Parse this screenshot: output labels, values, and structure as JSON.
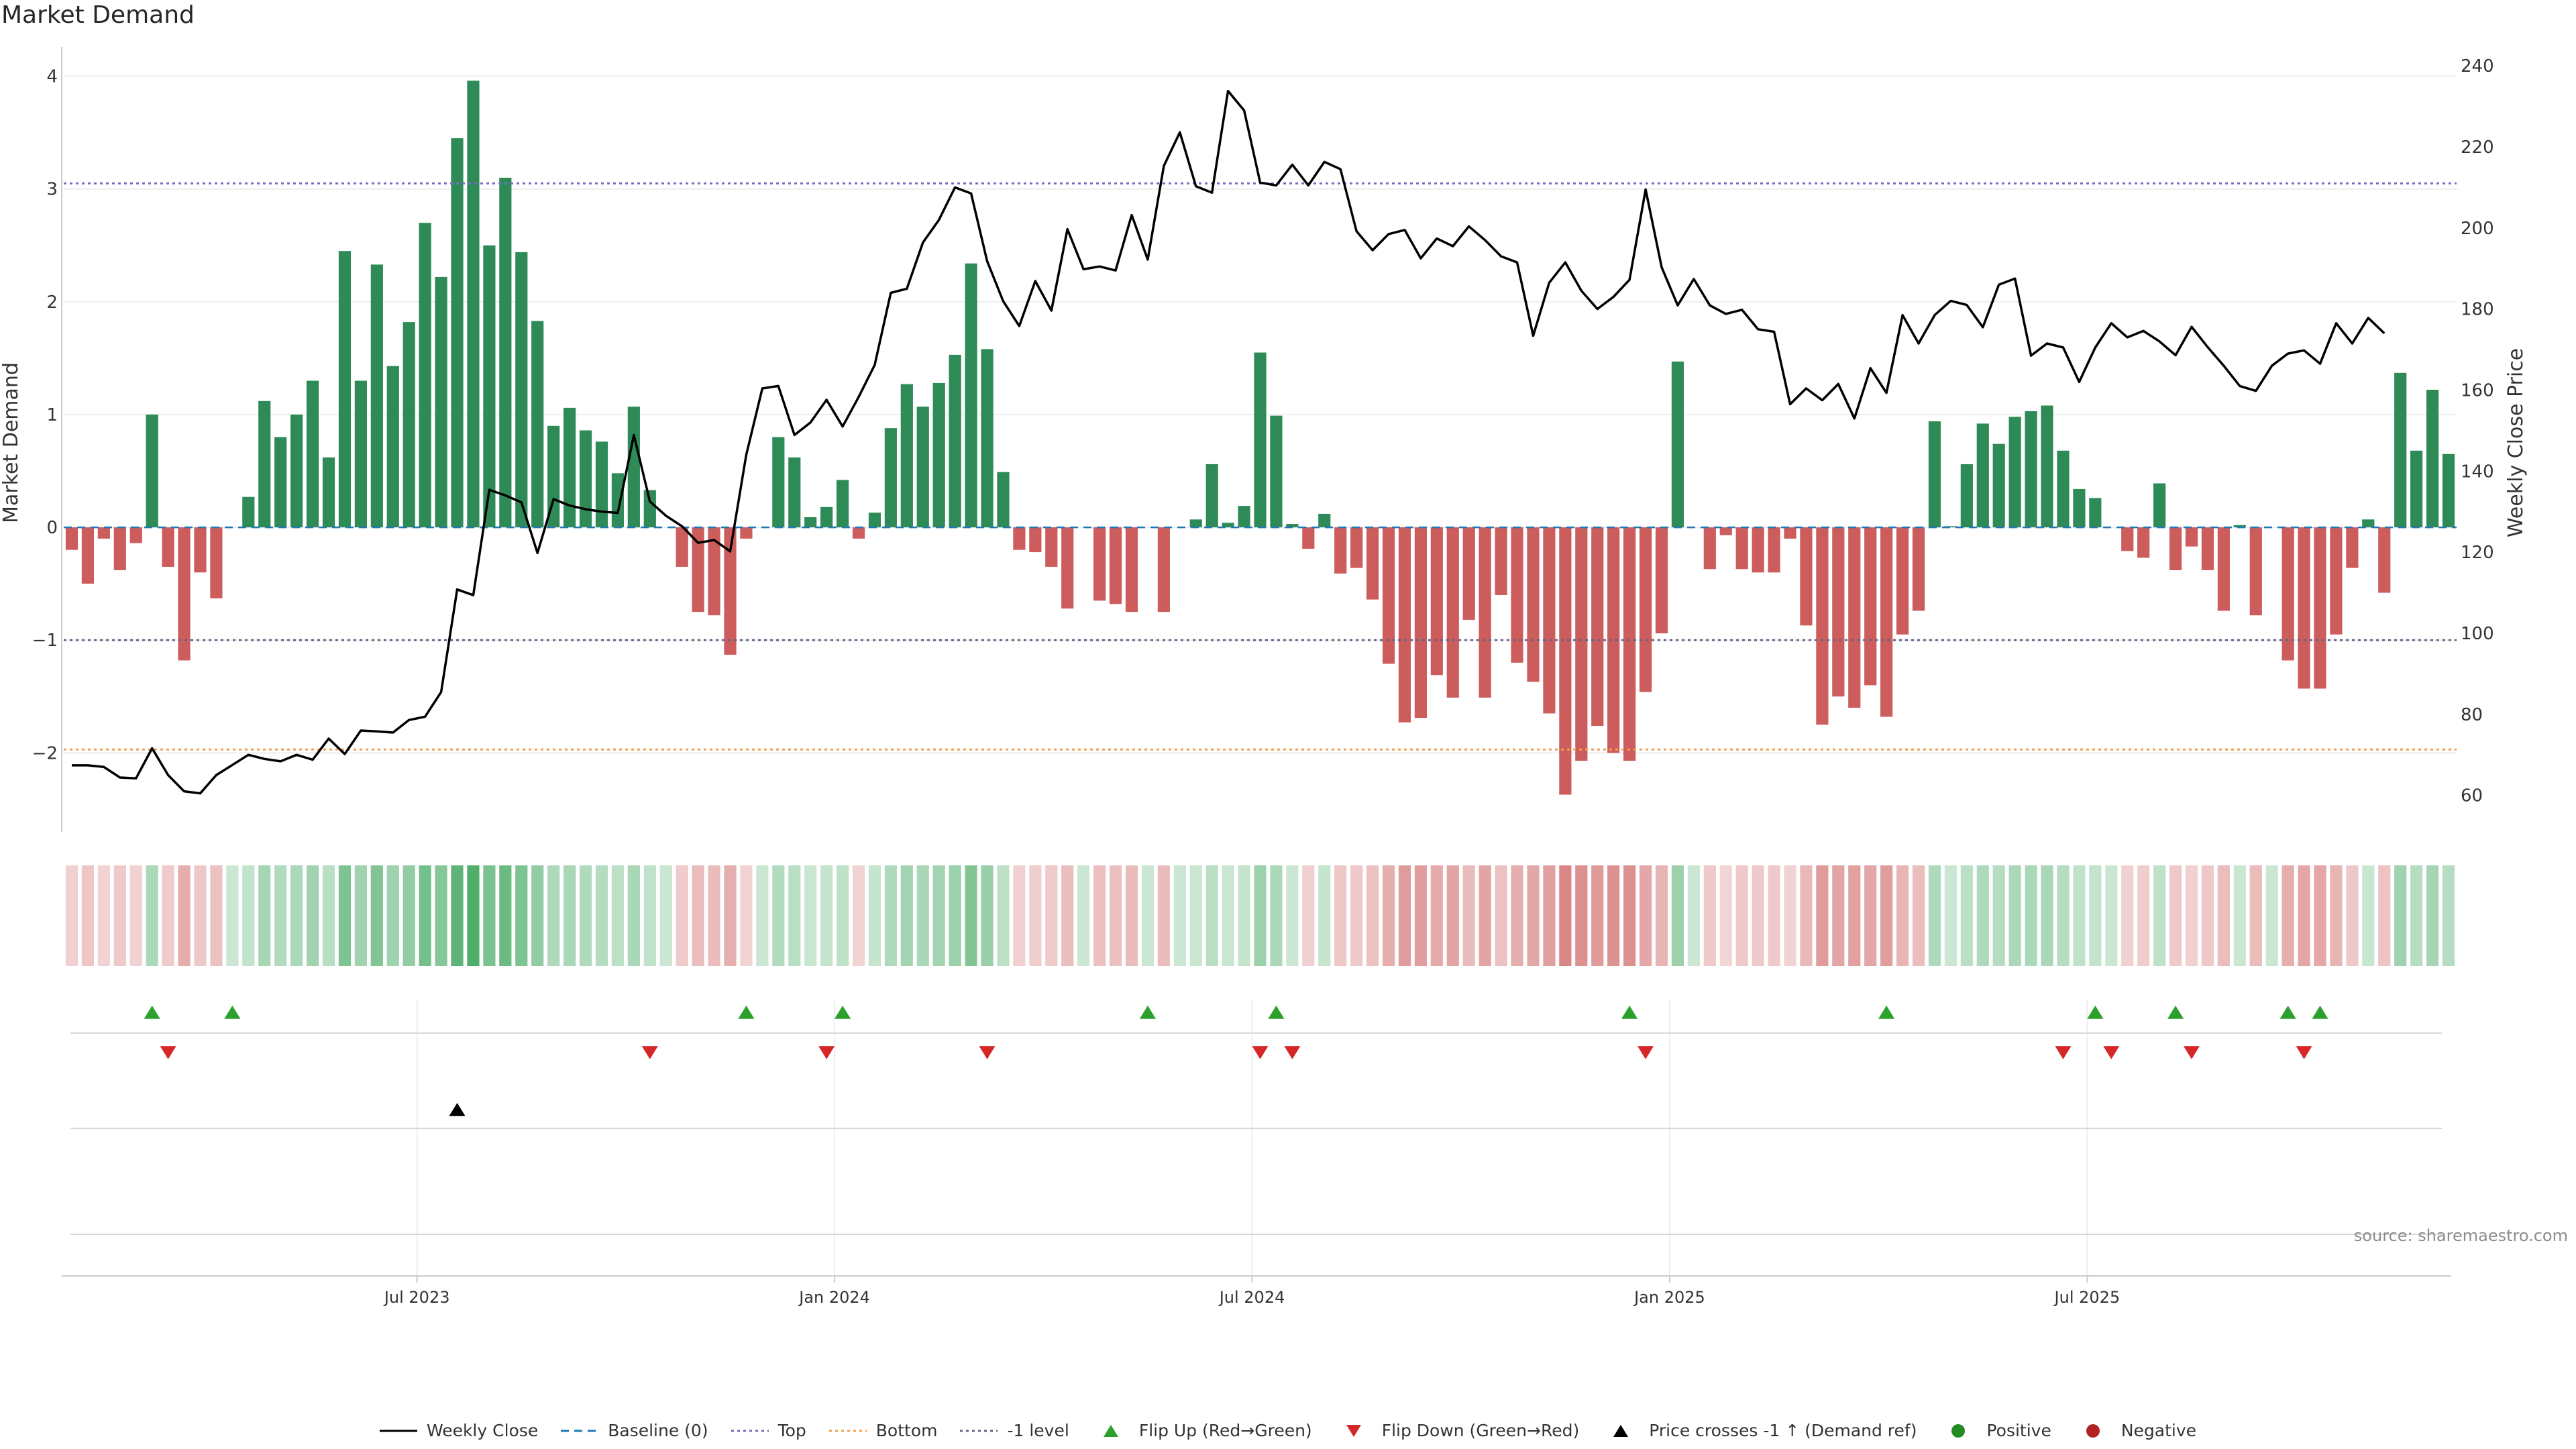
{
  "title": "Market Demand",
  "source": "source: sharemaestro.com",
  "legend": [
    {
      "label": "Weekly Close",
      "symbol": "line-solid",
      "color": "#000000"
    },
    {
      "label": "Baseline (0)",
      "symbol": "line-dash",
      "color": "#1f77b4"
    },
    {
      "label": "Top",
      "symbol": "line-dot",
      "color": "#7b68c8"
    },
    {
      "label": "Bottom",
      "symbol": "line-dot",
      "color": "#f0a050"
    },
    {
      "label": "-1 level",
      "symbol": "line-dot",
      "color": "#666688"
    },
    {
      "label": "Flip Up (Red→Green)",
      "symbol": "triangle-up",
      "color": "#2ca02c"
    },
    {
      "label": "Flip Down (Green→Red)",
      "symbol": "triangle-down",
      "color": "#d62728"
    },
    {
      "label": "Price crosses -1 ↑ (Demand ref)",
      "symbol": "triangle-up",
      "color": "#000000"
    },
    {
      "label": "Positive",
      "symbol": "dot",
      "color": "#228b22"
    },
    {
      "label": "Negative",
      "symbol": "dot",
      "color": "#b22222"
    }
  ],
  "chart_data": {
    "type": "bar",
    "title": "Market Demand",
    "ylabel": "Market Demand",
    "y2label": "Weekly Close Price",
    "ylim": [
      -2.7,
      4.2
    ],
    "y2lim": [
      51,
      243
    ],
    "yticks": [
      -2,
      -1,
      0,
      1,
      2,
      3,
      4
    ],
    "y2ticks": [
      60,
      80,
      100,
      120,
      140,
      160,
      180,
      200,
      220,
      240
    ],
    "xtick_labels": [
      "Jul 2023",
      "Jan 2024",
      "Jul 2024",
      "Jan 2025",
      "Jul 2025"
    ],
    "xtick_weeks": [
      22,
      48,
      74,
      100,
      126
    ],
    "reference_lines": {
      "baseline": 0,
      "top": 3.05,
      "bottom": -1.97,
      "minus_one": -1
    },
    "colors": {
      "positive": "#2e8b57",
      "negative": "#cd5c5c",
      "price": "#000000",
      "flip_up": "#2ca02c",
      "flip_down": "#d62728"
    },
    "demand": [
      -0.2,
      -0.5,
      -0.1,
      -0.38,
      -0.14,
      1.0,
      -0.35,
      -1.18,
      -0.4,
      -0.63,
      0.0,
      0.27,
      1.12,
      0.8,
      1.0,
      1.3,
      0.62,
      2.45,
      1.3,
      2.33,
      1.43,
      1.82,
      2.7,
      2.22,
      3.45,
      3.96,
      2.5,
      3.1,
      2.44,
      1.83,
      0.9,
      1.06,
      0.86,
      0.76,
      0.48,
      1.07,
      0.33,
      0.0,
      -0.35,
      -0.75,
      -0.78,
      -1.13,
      -0.1,
      0.0,
      0.8,
      0.62,
      0.09,
      0.18,
      0.42,
      -0.1,
      0.13,
      0.88,
      1.27,
      1.07,
      1.28,
      1.53,
      2.34,
      1.58,
      0.49,
      -0.2,
      -0.22,
      -0.35,
      -0.72,
      0.0,
      -0.65,
      -0.68,
      -0.75,
      0.0,
      -0.75,
      0.0,
      0.07,
      0.56,
      0.04,
      0.19,
      1.55,
      0.99,
      0.03,
      -0.19,
      0.12,
      -0.41,
      -0.36,
      -0.64,
      -1.21,
      -1.73,
      -1.69,
      -1.31,
      -1.51,
      -0.82,
      -1.51,
      -0.6,
      -1.2,
      -1.37,
      -1.65,
      -2.37,
      -2.07,
      -1.76,
      -2.0,
      -2.07,
      -1.46,
      -0.94,
      1.47,
      0.0,
      -0.37,
      -0.07,
      -0.37,
      -0.4,
      -0.4,
      -0.1,
      -0.87,
      -1.75,
      -1.5,
      -1.6,
      -1.4,
      -1.68,
      -0.95,
      -0.74,
      0.94,
      0.01,
      0.56,
      0.92,
      0.74,
      0.98,
      1.03,
      1.08,
      0.68,
      0.34,
      0.26,
      0.0,
      -0.21,
      -0.27,
      0.39,
      -0.38,
      -0.17,
      -0.38,
      -0.74,
      0.02,
      -0.78,
      0.0,
      -1.18,
      -1.43,
      -1.43,
      -0.95,
      -0.36,
      0.07,
      -0.58,
      1.37,
      0.68,
      1.22,
      0.65
    ],
    "price": [
      67.4,
      67.4,
      67,
      64.4,
      64.2,
      71.6,
      65,
      61,
      60.5,
      65,
      67.5,
      70,
      69,
      68.4,
      70,
      68.8,
      74,
      70.2,
      76,
      75.8,
      75.5,
      78.6,
      79.4,
      85.5,
      110.8,
      109.4,
      135.4,
      134,
      132.3,
      119.8,
      133.1,
      131.5,
      130.6,
      130,
      129.7,
      148.9,
      132.5,
      129,
      126.4,
      122.3,
      123,
      120.2,
      144,
      160.4,
      161,
      148.9,
      152,
      157.6,
      151,
      158.3,
      166.2,
      184,
      185,
      196.4,
      202,
      210,
      208.5,
      191.8,
      181.9,
      175.8,
      186.9,
      179.6,
      199.7,
      189.8,
      190.5,
      189.5,
      203.2,
      192.2,
      215.3,
      223.6,
      210.3,
      208.7,
      233.8,
      229,
      211.2,
      210.5,
      215.6,
      210.5,
      216.3,
      214.5,
      199.2,
      194.5,
      198.5,
      199.5,
      192.5,
      197.4,
      195.5,
      200.4,
      197,
      193,
      191.5,
      173.4,
      186.5,
      191.5,
      184.5,
      180,
      183,
      187.2,
      209.5,
      190.3,
      180.9,
      187.4,
      180.9,
      178.8,
      179.8,
      175,
      174.4,
      156.5,
      160.4,
      157.5,
      161.5,
      153,
      165.4,
      159.3,
      178.5,
      171.5,
      178.5,
      182,
      181,
      175.5,
      186,
      187.5,
      168.5,
      171.5,
      170.5,
      162,
      170.5,
      176.5,
      173,
      174.6,
      172,
      168.6,
      175.6,
      170.6,
      166,
      161,
      159.8,
      166,
      169,
      169.8,
      166.5,
      176.5,
      171.5,
      177.8,
      174
    ],
    "flip_up_weeks": [
      5,
      10,
      42,
      48,
      67,
      75,
      97,
      113,
      126,
      131,
      138,
      140
    ],
    "flip_down_weeks": [
      6,
      36,
      47,
      57,
      74,
      76,
      98,
      124,
      127,
      132,
      139
    ],
    "price_cross_weeks": [
      24
    ]
  }
}
